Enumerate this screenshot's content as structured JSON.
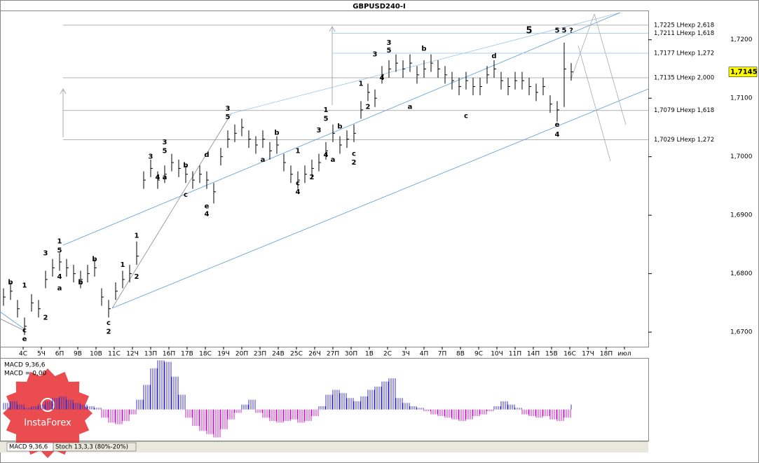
{
  "chart_data": {
    "type": "ohlc",
    "title": "GBPUSD240-I",
    "categories": [
      "4С",
      "5Ч",
      "6П",
      "9В",
      "10В",
      "11С",
      "12Ч",
      "13П",
      "16П",
      "17В",
      "18С",
      "19Ч",
      "20П",
      "23П",
      "24В",
      "25С",
      "26Ч",
      "27П",
      "30П",
      "1В",
      "2С",
      "3Ч",
      "4П",
      "7П",
      "8В",
      "9С",
      "10Ч",
      "11П",
      "14П",
      "15В",
      "16С",
      "17Ч",
      "18П",
      "июл"
    ],
    "high": [
      1.6775,
      1.6785,
      1.6755,
      1.6725,
      1.6765,
      1.6755,
      1.6805,
      1.6825,
      1.6835,
      1.6825,
      1.6815,
      1.6805,
      1.6815,
      1.6825,
      1.6775,
      1.6755,
      1.6785,
      1.6805,
      1.6815,
      1.6855,
      1.6975,
      1.6995,
      1.6975,
      1.6985,
      1.7005,
      1.6995,
      1.6985,
      1.6975,
      1.6985,
      1.6975,
      1.6955,
      1.7015,
      1.7045,
      1.7055,
      1.7065,
      1.7045,
      1.7035,
      1.7045,
      1.7025,
      1.7035,
      1.7005,
      1.6985,
      1.6975,
      1.6985,
      1.6995,
      1.7005,
      1.7025,
      1.7055,
      1.7035,
      1.7045,
      1.7055,
      1.7095,
      1.7125,
      1.7115,
      1.7155,
      1.7165,
      1.7175,
      1.7165,
      1.7175,
      1.7155,
      1.7165,
      1.7175,
      1.7165,
      1.7155,
      1.7145,
      1.7135,
      1.7145,
      1.7135,
      1.7135,
      1.7155,
      1.7165,
      1.7145,
      1.7135,
      1.7145,
      1.7145,
      1.7135,
      1.7125,
      1.7135,
      1.7105,
      1.7095,
      1.7195,
      1.716
    ],
    "low": [
      1.6745,
      1.6755,
      1.6725,
      1.6695,
      1.6735,
      1.6725,
      1.6775,
      1.6795,
      1.6805,
      1.6795,
      1.6785,
      1.6775,
      1.6785,
      1.6795,
      1.6745,
      1.6725,
      1.6755,
      1.6775,
      1.6785,
      1.6815,
      1.6945,
      1.6965,
      1.6945,
      1.6955,
      1.6975,
      1.6965,
      1.6955,
      1.6945,
      1.6955,
      1.6945,
      1.692,
      1.6985,
      1.7015,
      1.7025,
      1.7035,
      1.7015,
      1.7005,
      1.7015,
      1.6995,
      1.7005,
      1.6975,
      1.6955,
      1.6945,
      1.6955,
      1.6965,
      1.6975,
      1.6995,
      1.7025,
      1.7005,
      1.7015,
      1.7025,
      1.7065,
      1.7095,
      1.7085,
      1.7125,
      1.7135,
      1.7145,
      1.7135,
      1.7145,
      1.7125,
      1.7135,
      1.7145,
      1.7135,
      1.7125,
      1.7115,
      1.7105,
      1.7115,
      1.7105,
      1.7105,
      1.7125,
      1.7135,
      1.7115,
      1.7105,
      1.7115,
      1.7115,
      1.7105,
      1.7095,
      1.7105,
      1.7075,
      1.706,
      1.7085,
      1.713
    ],
    "close": [
      1.676,
      1.677,
      1.674,
      1.671,
      1.675,
      1.674,
      1.679,
      1.681,
      1.682,
      1.681,
      1.68,
      1.679,
      1.68,
      1.681,
      1.676,
      1.674,
      1.677,
      1.679,
      1.68,
      1.683,
      1.696,
      1.698,
      1.696,
      1.697,
      1.699,
      1.698,
      1.697,
      1.696,
      1.697,
      1.696,
      1.694,
      1.7,
      1.703,
      1.704,
      1.705,
      1.703,
      1.702,
      1.703,
      1.701,
      1.702,
      1.699,
      1.697,
      1.696,
      1.697,
      1.698,
      1.699,
      1.701,
      1.704,
      1.702,
      1.703,
      1.704,
      1.708,
      1.711,
      1.71,
      1.714,
      1.715,
      1.716,
      1.715,
      1.716,
      1.714,
      1.715,
      1.716,
      1.715,
      1.714,
      1.713,
      1.712,
      1.713,
      1.712,
      1.712,
      1.714,
      1.715,
      1.713,
      1.712,
      1.713,
      1.713,
      1.712,
      1.711,
      1.712,
      1.709,
      1.708,
      1.715,
      1.7145
    ],
    "color": "#000000",
    "ylim": [
      1.6675,
      1.725
    ],
    "yticks": [
      {
        "value": 1.67,
        "label": "1,6700"
      },
      {
        "value": 1.68,
        "label": "1,6800"
      },
      {
        "value": 1.69,
        "label": "1,6900"
      },
      {
        "value": 1.7,
        "label": "1,7000"
      },
      {
        "value": 1.71,
        "label": "1,7100"
      },
      {
        "value": 1.72,
        "label": "1,7200"
      }
    ],
    "current_price": {
      "value": 1.7145,
      "label": "1,7145"
    },
    "levels": [
      {
        "value": 1.7225,
        "label": "1,7225 LHexp 2,618"
      },
      {
        "value": 1.7211,
        "label": "1,7211 LHexp 1,618"
      },
      {
        "value": 1.7177,
        "label": "1,7177 LHexp 1,272"
      },
      {
        "value": 1.7135,
        "label": "1,7135 LHexp 2,000"
      },
      {
        "value": 1.7079,
        "label": "1,7079 LHexp 1,618"
      },
      {
        "value": 1.7029,
        "label": "1,7029 LHexp 1,272"
      }
    ],
    "annotations": [
      {
        "text": "b",
        "bar": 1,
        "price": 1.6785,
        "color": "#000"
      },
      {
        "text": "c",
        "bar": 3,
        "price": 1.6703,
        "color": "#000"
      },
      {
        "text": "e",
        "bar": 3,
        "price": 1.6688,
        "color": "#00008b"
      },
      {
        "text": "1",
        "bar": 3,
        "price": 1.678,
        "color": "#0000cc"
      },
      {
        "text": "2",
        "bar": 6,
        "price": 1.6725,
        "color": "#0000cc"
      },
      {
        "text": "3",
        "bar": 6,
        "price": 1.6835,
        "color": "#0000cc"
      },
      {
        "text": "4",
        "bar": 8,
        "price": 1.6795,
        "color": "#0000cc"
      },
      {
        "text": "a",
        "bar": 8,
        "price": 1.6775,
        "color": "#000"
      },
      {
        "text": "1",
        "bar": 8,
        "price": 1.6855,
        "color": "#000"
      },
      {
        "text": "5",
        "bar": 8,
        "price": 1.684,
        "color": "#0000cc"
      },
      {
        "text": "b",
        "bar": 11,
        "price": 1.6785,
        "color": "#000"
      },
      {
        "text": "b",
        "bar": 13,
        "price": 1.6825,
        "color": "#000"
      },
      {
        "text": "c",
        "bar": 15,
        "price": 1.6716,
        "color": "#000"
      },
      {
        "text": "2",
        "bar": 15,
        "price": 1.6701,
        "color": "#000"
      },
      {
        "text": "1",
        "bar": 17,
        "price": 1.6815,
        "color": "#0000cc"
      },
      {
        "text": "1",
        "bar": 19,
        "price": 1.6865,
        "color": "#000"
      },
      {
        "text": "2",
        "bar": 19,
        "price": 1.6795,
        "color": "#000"
      },
      {
        "text": "3",
        "bar": 21,
        "price": 1.7,
        "color": "#000"
      },
      {
        "text": "3",
        "bar": 23,
        "price": 1.7025,
        "color": "#0000cc"
      },
      {
        "text": "5",
        "bar": 23,
        "price": 1.701,
        "color": "#000"
      },
      {
        "text": "4",
        "bar": 22,
        "price": 1.6965,
        "color": "#000"
      },
      {
        "text": "a",
        "bar": 23,
        "price": 1.6965,
        "color": "#000"
      },
      {
        "text": "b",
        "bar": 26,
        "price": 1.6985,
        "color": "#000"
      },
      {
        "text": "c",
        "bar": 26,
        "price": 1.6935,
        "color": "#000"
      },
      {
        "text": "d",
        "bar": 29,
        "price": 1.7003,
        "color": "#000"
      },
      {
        "text": "e",
        "bar": 29,
        "price": 1.6915,
        "color": "#000"
      },
      {
        "text": "4",
        "bar": 29,
        "price": 1.6902,
        "color": "#0000cc"
      },
      {
        "text": "3",
        "bar": 32,
        "price": 1.7082,
        "color": "#000"
      },
      {
        "text": "5",
        "bar": 32,
        "price": 1.7068,
        "color": "#0000cc"
      },
      {
        "text": "a",
        "bar": 37,
        "price": 1.6995,
        "color": "#000"
      },
      {
        "text": "b",
        "bar": 39,
        "price": 1.7041,
        "color": "#000"
      },
      {
        "text": "1",
        "bar": 42,
        "price": 1.701,
        "color": "#000"
      },
      {
        "text": "c",
        "bar": 42,
        "price": 1.6955,
        "color": "#000"
      },
      {
        "text": "4",
        "bar": 42,
        "price": 1.694,
        "color": "#000"
      },
      {
        "text": "2",
        "bar": 44,
        "price": 1.6965,
        "color": "#000"
      },
      {
        "text": "3",
        "bar": 45,
        "price": 1.7045,
        "color": "#000"
      },
      {
        "text": "4",
        "bar": 46,
        "price": 1.7003,
        "color": "#000"
      },
      {
        "text": "1",
        "bar": 46,
        "price": 1.708,
        "color": "#0000cc"
      },
      {
        "text": "5",
        "bar": 46,
        "price": 1.7065,
        "color": "#000"
      },
      {
        "text": "a",
        "bar": 47,
        "price": 1.6995,
        "color": "#000"
      },
      {
        "text": "b",
        "bar": 48,
        "price": 1.7052,
        "color": "#000"
      },
      {
        "text": "c",
        "bar": 50,
        "price": 1.7005,
        "color": "#000"
      },
      {
        "text": "2",
        "bar": 50,
        "price": 1.699,
        "color": "#0000cc"
      },
      {
        "text": "1",
        "bar": 51,
        "price": 1.7125,
        "color": "#000"
      },
      {
        "text": "2",
        "bar": 52,
        "price": 1.7085,
        "color": "#000"
      },
      {
        "text": "3",
        "bar": 53,
        "price": 1.7175,
        "color": "#000"
      },
      {
        "text": "3",
        "bar": 55,
        "price": 1.7195,
        "color": "#0000cc"
      },
      {
        "text": "5",
        "bar": 55,
        "price": 1.7182,
        "color": "#000"
      },
      {
        "text": "4",
        "bar": 54,
        "price": 1.7135,
        "color": "#000"
      },
      {
        "text": "a",
        "bar": 58,
        "price": 1.7085,
        "color": "#000"
      },
      {
        "text": "b",
        "bar": 60,
        "price": 1.7185,
        "color": "#000"
      },
      {
        "text": "c",
        "bar": 66,
        "price": 1.707,
        "color": "#000"
      },
      {
        "text": "d",
        "bar": 70,
        "price": 1.7172,
        "color": "#000"
      },
      {
        "text": "5",
        "bar": 75,
        "price": 1.7215,
        "color": "#1e9fbf"
      },
      {
        "text": "5",
        "bar": 79,
        "price": 1.7216,
        "color": "#0000cc"
      },
      {
        "text": "5",
        "bar": 80,
        "price": 1.7216,
        "color": "#000"
      },
      {
        "text": "?",
        "bar": 81,
        "price": 1.7216,
        "color": "#000"
      },
      {
        "text": "e",
        "bar": 79,
        "price": 1.7055,
        "color": "#000"
      },
      {
        "text": "4",
        "bar": 79,
        "price": 1.7038,
        "color": "#0000cc"
      }
    ],
    "macd": {
      "label": "MACD 9,36,6",
      "value_label": "MACD = 0,00",
      "ylim": [
        -0.0037,
        0.0062
      ],
      "positive_color": "#3a2fc4",
      "negative_color": "#c81ec8",
      "values": [
        0.0008,
        0.001,
        0.0006,
        0.0002,
        0.0004,
        0.0006,
        0.001,
        0.0014,
        0.0016,
        0.0012,
        0.0008,
        0.0006,
        0.0004,
        0.0002,
        -0.001,
        -0.0016,
        -0.0018,
        -0.0014,
        -0.0006,
        0.0012,
        0.003,
        0.005,
        0.006,
        0.0058,
        0.004,
        0.0018,
        -0.001,
        -0.002,
        -0.0026,
        -0.003,
        -0.0034,
        -0.0024,
        -0.0012,
        -0.0004,
        0.0006,
        0.0012,
        -0.0004,
        -0.001,
        -0.0014,
        -0.0016,
        -0.0014,
        -0.0012,
        -0.0016,
        -0.0014,
        -0.0008,
        0.0004,
        0.0018,
        0.0024,
        0.002,
        0.0014,
        0.001,
        0.0016,
        0.0024,
        0.0028,
        0.0034,
        0.0038,
        0.0014,
        0.0008,
        0.0004,
        0.0002,
        -0.0002,
        -0.0006,
        -0.0008,
        -0.001,
        -0.0012,
        -0.0014,
        -0.0012,
        -0.0008,
        -0.0006,
        -0.0002,
        0.0004,
        0.001,
        0.0006,
        0.0002,
        -0.0006,
        -0.0008,
        -0.001,
        -0.0008,
        -0.0012,
        -0.0014,
        -0.001,
        0.0006
      ]
    },
    "tabs": [
      "MACD 9,36,6",
      "Stoch 13,3,3 (80%-20%)"
    ],
    "watermark": "InstaForex"
  }
}
